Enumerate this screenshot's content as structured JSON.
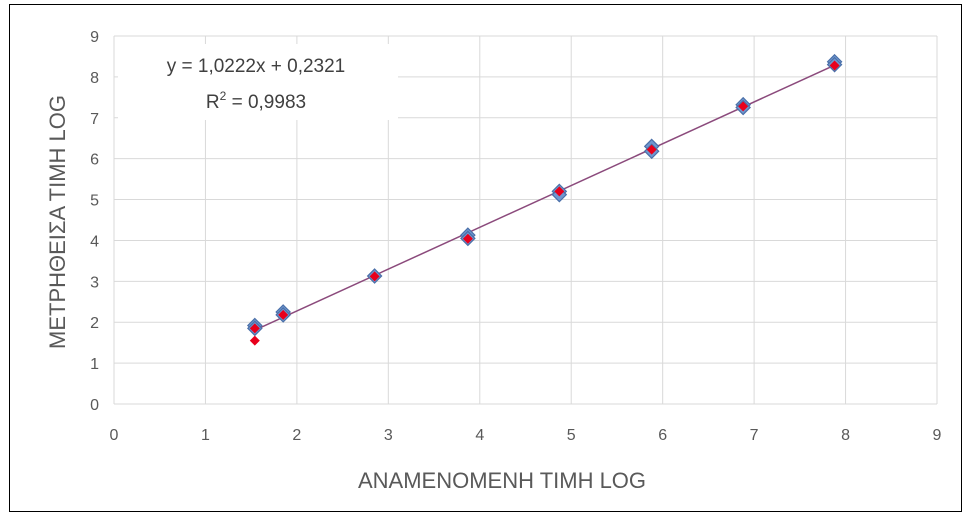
{
  "chart_data": {
    "type": "scatter",
    "xlabel": "ANAMENOMENH TIMH LOG",
    "ylabel": "ΜΕΤΡΗΘΕΙΣΑ ΤΙΜΗ LOG",
    "xlim": [
      0,
      9
    ],
    "ylim": [
      0,
      9
    ],
    "x_ticks": [
      "0",
      "1",
      "2",
      "3",
      "4",
      "5",
      "6",
      "7",
      "8",
      "9"
    ],
    "y_ticks": [
      "0",
      "1",
      "2",
      "3",
      "4",
      "5",
      "6",
      "7",
      "8",
      "9"
    ],
    "grid": true,
    "series": [
      {
        "marker": "diamond",
        "color": "#6f97cf",
        "edge_color": "#4a6fa8",
        "x": [
          1.54,
          1.54,
          1.85,
          1.85,
          2.85,
          3.87,
          3.87,
          4.87,
          4.87,
          5.88,
          5.88,
          6.88,
          6.88,
          7.88,
          7.88
        ],
        "y": [
          1.92,
          1.85,
          2.25,
          2.18,
          3.13,
          4.13,
          4.05,
          5.2,
          5.12,
          6.3,
          6.18,
          7.32,
          7.25,
          8.37,
          8.3
        ]
      },
      {
        "marker": "diamond",
        "color": "#e8001c",
        "x": [
          1.54,
          1.54,
          1.85,
          2.85,
          3.87,
          4.87,
          5.88,
          6.88,
          7.88
        ],
        "y": [
          1.85,
          1.55,
          2.18,
          3.12,
          4.04,
          5.2,
          6.22,
          7.28,
          8.28
        ]
      }
    ],
    "trendline": {
      "slope": 1.0222,
      "intercept": 0.2321,
      "x_range": [
        1.54,
        7.88
      ],
      "color": "#8b4a7c"
    },
    "annotation": {
      "equation": "y = 1,0222x + 0,2321",
      "r2_prefix": "R",
      "r2_sup": "2",
      "r2_suffix": " = 0,9983"
    }
  }
}
